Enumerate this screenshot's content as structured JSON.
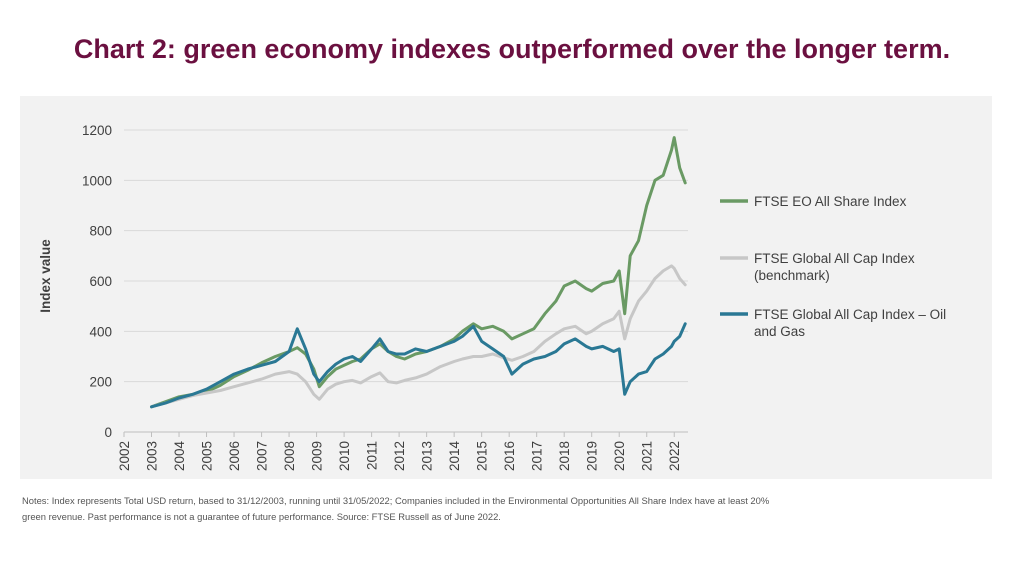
{
  "title": "Chart 2: green economy indexes outperformed over the longer term.",
  "notes": [
    "Notes: Index represents Total USD return, based to 31/12/2003, running until 31/05/2022; Companies included in the Environmental Opportunities All Share Index have at least 20%",
    "green revenue. Past performance is not a guarantee of future performance. Source: FTSE Russell as of June 2022."
  ],
  "chart_data": {
    "type": "line",
    "ylabel": "Index value",
    "xlabel": "",
    "ylim": [
      0,
      1200
    ],
    "yticks": [
      0,
      200,
      400,
      600,
      800,
      1000,
      1200
    ],
    "xlim": [
      2002,
      2022.5
    ],
    "xticks": [
      "2002",
      "2003",
      "2004",
      "2005",
      "2006",
      "2007",
      "2008",
      "2009",
      "2010",
      "2011",
      "2012",
      "2013",
      "2014",
      "2015",
      "2016",
      "2017",
      "2018",
      "2019",
      "2020",
      "2021",
      "2022"
    ],
    "grid": "horizontal",
    "legend_position": "right",
    "series": [
      {
        "name": "FTSE EO All Share Index",
        "color": "#6a9a64",
        "x": [
          2003.0,
          2003.5,
          2004.0,
          2004.5,
          2005.0,
          2005.5,
          2006.0,
          2006.5,
          2007.0,
          2007.5,
          2008.0,
          2008.3,
          2008.6,
          2008.9,
          2009.1,
          2009.4,
          2009.7,
          2010.0,
          2010.3,
          2010.6,
          2011.0,
          2011.3,
          2011.6,
          2011.9,
          2012.2,
          2012.6,
          2013.0,
          2013.5,
          2014.0,
          2014.3,
          2014.7,
          2015.0,
          2015.4,
          2015.8,
          2016.1,
          2016.5,
          2016.9,
          2017.3,
          2017.7,
          2018.0,
          2018.4,
          2018.8,
          2019.0,
          2019.4,
          2019.8,
          2020.0,
          2020.2,
          2020.4,
          2020.7,
          2021.0,
          2021.3,
          2021.6,
          2021.9,
          2022.0,
          2022.2,
          2022.4
        ],
        "y": [
          100,
          120,
          140,
          150,
          160,
          185,
          220,
          245,
          275,
          300,
          320,
          335,
          310,
          250,
          180,
          220,
          250,
          265,
          280,
          290,
          330,
          350,
          320,
          300,
          290,
          310,
          320,
          340,
          370,
          400,
          430,
          410,
          420,
          400,
          370,
          390,
          410,
          470,
          520,
          580,
          600,
          570,
          560,
          590,
          600,
          640,
          470,
          700,
          760,
          900,
          1000,
          1020,
          1120,
          1170,
          1050,
          990
        ]
      },
      {
        "name": "FTSE Global All Cap Index (benchmark)",
        "color": "#c7c7c7",
        "x": [
          2003.0,
          2003.5,
          2004.0,
          2004.5,
          2005.0,
          2005.5,
          2006.0,
          2006.5,
          2007.0,
          2007.5,
          2008.0,
          2008.3,
          2008.6,
          2008.9,
          2009.1,
          2009.4,
          2009.7,
          2010.0,
          2010.3,
          2010.6,
          2011.0,
          2011.3,
          2011.6,
          2011.9,
          2012.2,
          2012.6,
          2013.0,
          2013.5,
          2014.0,
          2014.3,
          2014.7,
          2015.0,
          2015.4,
          2015.8,
          2016.1,
          2016.5,
          2016.9,
          2017.3,
          2017.7,
          2018.0,
          2018.4,
          2018.8,
          2019.0,
          2019.4,
          2019.8,
          2020.0,
          2020.2,
          2020.4,
          2020.7,
          2021.0,
          2021.3,
          2021.6,
          2021.9,
          2022.0,
          2022.2,
          2022.4
        ],
        "y": [
          100,
          115,
          130,
          145,
          155,
          165,
          180,
          195,
          210,
          230,
          240,
          230,
          200,
          150,
          130,
          170,
          190,
          200,
          205,
          195,
          220,
          235,
          200,
          195,
          205,
          215,
          230,
          260,
          280,
          290,
          300,
          300,
          310,
          295,
          285,
          300,
          320,
          360,
          390,
          410,
          420,
          390,
          400,
          430,
          450,
          480,
          370,
          450,
          520,
          560,
          610,
          640,
          660,
          650,
          610,
          585
        ]
      },
      {
        "name": "FTSE Global All Cap Index – Oil and Gas",
        "color": "#2a7894",
        "x": [
          2003.0,
          2003.5,
          2004.0,
          2004.5,
          2005.0,
          2005.5,
          2006.0,
          2006.5,
          2007.0,
          2007.5,
          2008.0,
          2008.3,
          2008.6,
          2008.9,
          2009.1,
          2009.4,
          2009.7,
          2010.0,
          2010.3,
          2010.6,
          2011.0,
          2011.3,
          2011.6,
          2011.9,
          2012.2,
          2012.6,
          2013.0,
          2013.5,
          2014.0,
          2014.3,
          2014.7,
          2015.0,
          2015.4,
          2015.8,
          2016.1,
          2016.5,
          2016.9,
          2017.3,
          2017.7,
          2018.0,
          2018.4,
          2018.8,
          2019.0,
          2019.4,
          2019.8,
          2020.0,
          2020.2,
          2020.4,
          2020.7,
          2021.0,
          2021.3,
          2021.6,
          2021.9,
          2022.0,
          2022.2,
          2022.4
        ],
        "y": [
          100,
          115,
          135,
          150,
          170,
          200,
          230,
          250,
          265,
          280,
          320,
          410,
          330,
          230,
          200,
          240,
          270,
          290,
          300,
          280,
          330,
          370,
          320,
          310,
          310,
          330,
          320,
          340,
          360,
          380,
          420,
          360,
          330,
          300,
          230,
          270,
          290,
          300,
          320,
          350,
          370,
          340,
          330,
          340,
          320,
          330,
          150,
          200,
          230,
          240,
          290,
          310,
          340,
          360,
          380,
          430
        ]
      }
    ]
  }
}
